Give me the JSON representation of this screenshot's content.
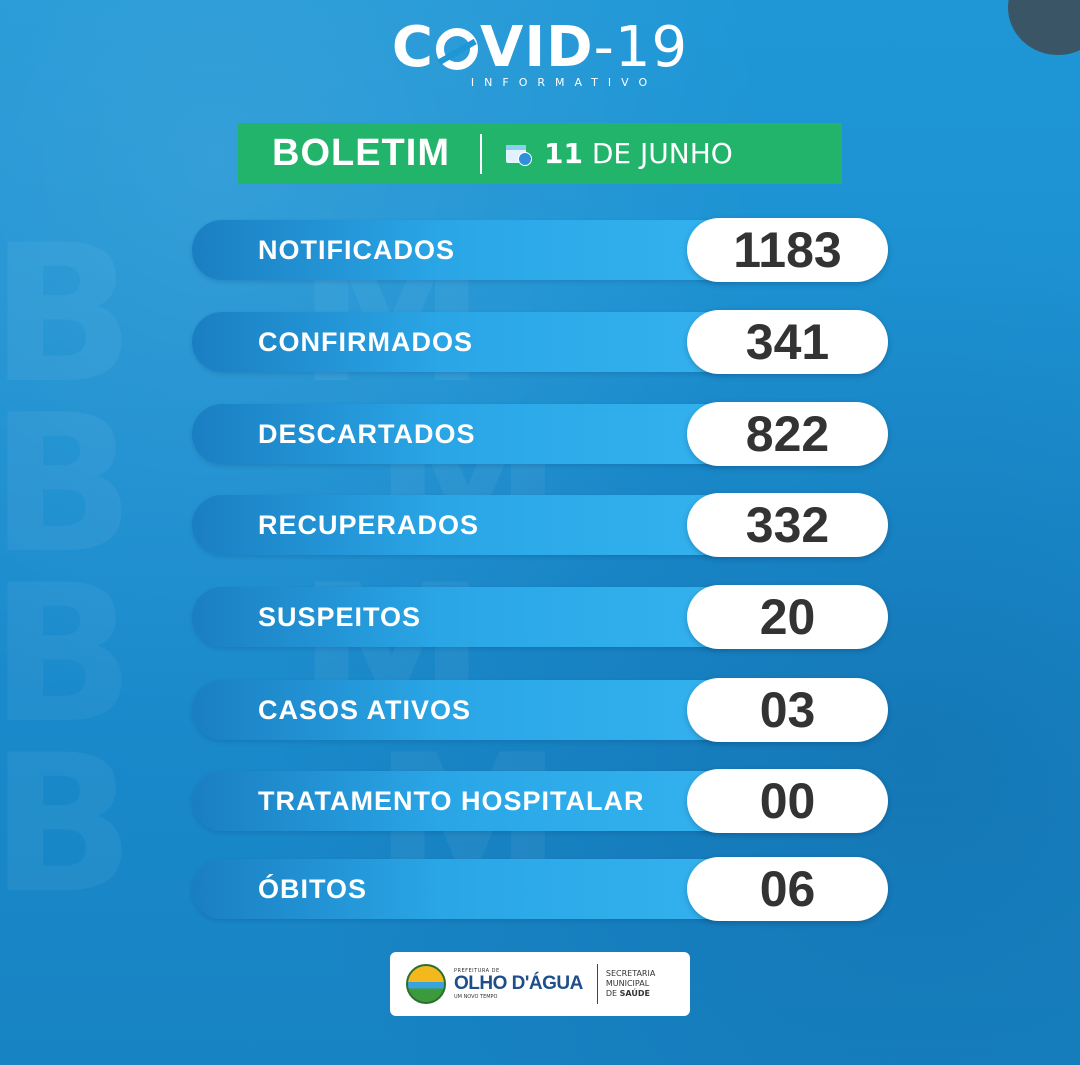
{
  "header": {
    "logo_main": "COVID",
    "logo_suffix": "-19",
    "logo_sub": "INFORMATIVO"
  },
  "boletim": {
    "title": "BOLETIM",
    "date_day": "11",
    "date_rest": "DE JUNHO"
  },
  "stats": [
    {
      "label": "NOTIFICADOS",
      "value": "1183"
    },
    {
      "label": "CONFIRMADOS",
      "value": "341"
    },
    {
      "label": "DESCARTADOS",
      "value": "822"
    },
    {
      "label": "RECUPERADOS",
      "value": "332"
    },
    {
      "label": "SUSPEITOS",
      "value": "20"
    },
    {
      "label": "CASOS ATIVOS",
      "value": "03"
    },
    {
      "label": "TRATAMENTO HOSPITALAR",
      "value": "00"
    },
    {
      "label": "ÓBITOS",
      "value": "06"
    }
  ],
  "footer": {
    "brand_top": "PREFEITURA DE",
    "brand_main": "OLHO D'ÁGUA",
    "brand_tag": "UM NOVO TEMPO",
    "sec_line1": "SECRETARIA",
    "sec_line2": "MUNICIPAL",
    "sec_line3_prefix": "DE ",
    "sec_line3_bold": "SAÚDE"
  },
  "colors": {
    "background": "#1a8fd0",
    "banner": "#23b46b",
    "bar": "#2aa6e6",
    "pill": "#ffffff",
    "value_text": "#333333"
  },
  "icons": [
    "calendar-icon",
    "virus-icon",
    "edit-pen-icon",
    "city-seal-icon"
  ]
}
